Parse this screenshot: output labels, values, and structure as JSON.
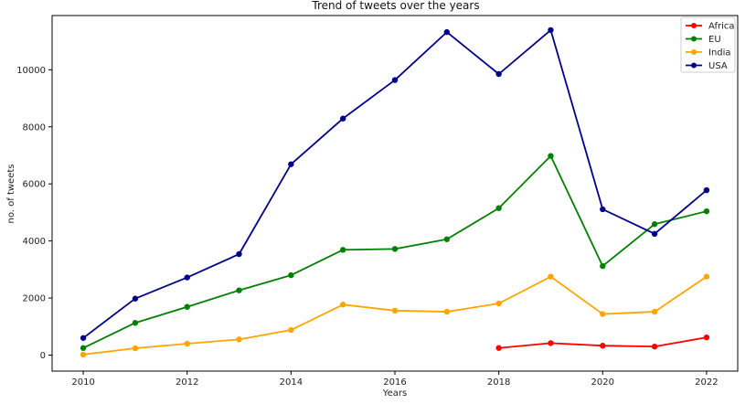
{
  "chart_data": {
    "type": "line",
    "title": "Trend of tweets over the years",
    "xlabel": "Years",
    "ylabel": "no. of tweets",
    "xlim": [
      2009.4,
      2022.6
    ],
    "ylim": [
      -560,
      11900
    ],
    "x_ticks": [
      2010,
      2012,
      2014,
      2016,
      2018,
      2020,
      2022
    ],
    "y_ticks": [
      0,
      2000,
      4000,
      6000,
      8000,
      10000
    ],
    "grid": false,
    "legend_position": "top-right",
    "series": [
      {
        "name": "Africa",
        "color": "#ff0000",
        "x": [
          2018,
          2019,
          2020,
          2021,
          2022
        ],
        "values": [
          250,
          420,
          330,
          300,
          620
        ]
      },
      {
        "name": "EU",
        "color": "#008000",
        "x": [
          2010,
          2011,
          2012,
          2013,
          2014,
          2015,
          2016,
          2017,
          2018,
          2019,
          2020,
          2021,
          2022
        ],
        "values": [
          250,
          1130,
          1690,
          2270,
          2800,
          3690,
          3720,
          4060,
          5150,
          6980,
          3120,
          4590,
          5040
        ]
      },
      {
        "name": "India",
        "color": "#ffa500",
        "x": [
          2010,
          2011,
          2012,
          2013,
          2014,
          2015,
          2016,
          2017,
          2018,
          2019,
          2020,
          2021,
          2022
        ],
        "values": [
          20,
          240,
          400,
          550,
          880,
          1770,
          1560,
          1520,
          1810,
          2750,
          1440,
          1520,
          2750
        ]
      },
      {
        "name": "USA",
        "color": "#00008b",
        "x": [
          2010,
          2011,
          2012,
          2013,
          2014,
          2015,
          2016,
          2017,
          2018,
          2019,
          2020,
          2021,
          2022
        ],
        "values": [
          600,
          1980,
          2720,
          3540,
          6690,
          8290,
          9640,
          11320,
          9850,
          11390,
          5110,
          4250,
          5780
        ]
      }
    ]
  }
}
